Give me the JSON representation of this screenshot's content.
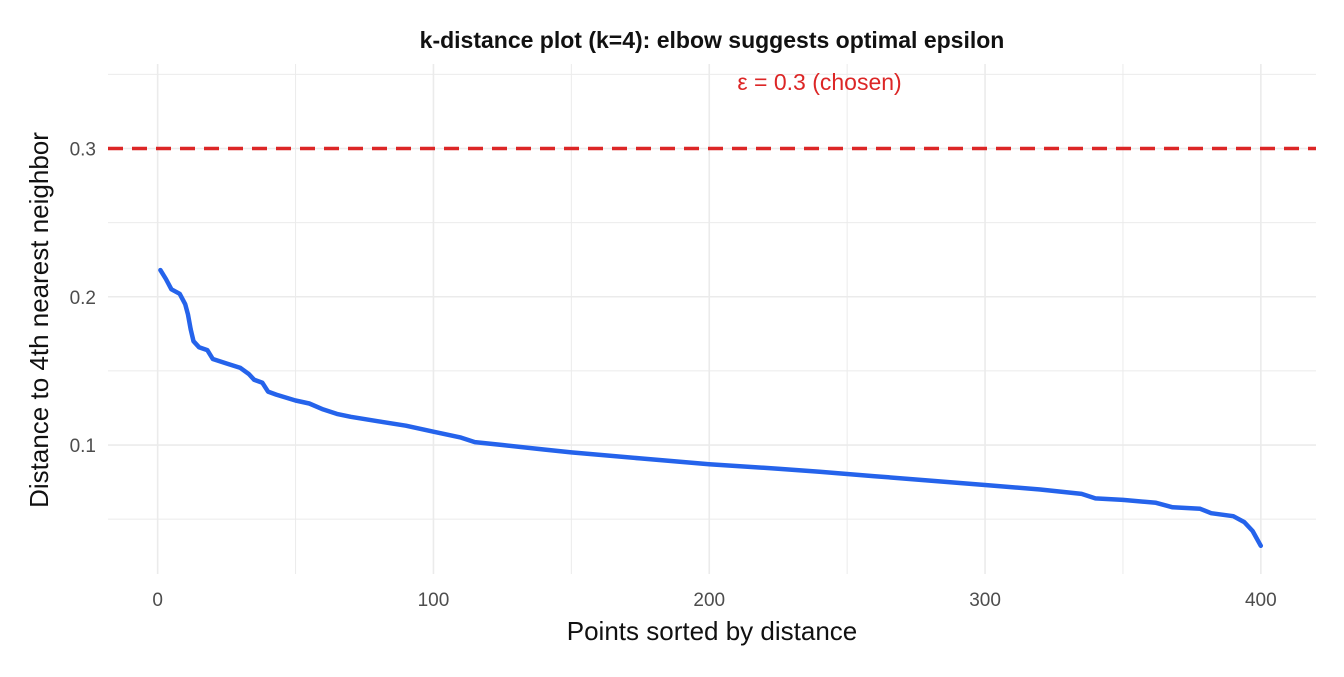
{
  "chart_data": {
    "type": "line",
    "title": "k-distance plot (k=4): elbow suggests optimal epsilon",
    "xlabel": "Points sorted by distance",
    "ylabel": "Distance to 4th nearest neighbor",
    "xlim": [
      -18,
      420
    ],
    "ylim": [
      0.013,
      0.357
    ],
    "x_ticks": [
      0,
      100,
      200,
      300,
      400
    ],
    "x_tick_labels": [
      "0",
      "100",
      "200",
      "300",
      "400"
    ],
    "y_ticks": [
      0.1,
      0.2,
      0.3
    ],
    "y_tick_labels": [
      "0.1",
      "0.2",
      "0.3"
    ],
    "grid": true,
    "legend": "none",
    "colors": {
      "line": "#2563eb",
      "threshold": "#dc2626",
      "grid": "#ebebeb"
    },
    "series": [
      {
        "points": [
          [
            1,
            0.218
          ],
          [
            3,
            0.212
          ],
          [
            5,
            0.205
          ],
          [
            8,
            0.202
          ],
          [
            10,
            0.195
          ],
          [
            11,
            0.188
          ],
          [
            12,
            0.178
          ],
          [
            13,
            0.17
          ],
          [
            15,
            0.166
          ],
          [
            18,
            0.164
          ],
          [
            20,
            0.158
          ],
          [
            25,
            0.155
          ],
          [
            30,
            0.152
          ],
          [
            33,
            0.148
          ],
          [
            35,
            0.144
          ],
          [
            38,
            0.142
          ],
          [
            40,
            0.136
          ],
          [
            43,
            0.134
          ],
          [
            50,
            0.13
          ],
          [
            55,
            0.128
          ],
          [
            60,
            0.124
          ],
          [
            65,
            0.121
          ],
          [
            70,
            0.119
          ],
          [
            80,
            0.116
          ],
          [
            90,
            0.113
          ],
          [
            100,
            0.109
          ],
          [
            110,
            0.105
          ],
          [
            115,
            0.102
          ],
          [
            125,
            0.1
          ],
          [
            140,
            0.097
          ],
          [
            150,
            0.095
          ],
          [
            175,
            0.091
          ],
          [
            200,
            0.087
          ],
          [
            225,
            0.084
          ],
          [
            240,
            0.082
          ],
          [
            260,
            0.079
          ],
          [
            280,
            0.076
          ],
          [
            300,
            0.073
          ],
          [
            320,
            0.07
          ],
          [
            335,
            0.067
          ],
          [
            340,
            0.064
          ],
          [
            350,
            0.063
          ],
          [
            362,
            0.061
          ],
          [
            368,
            0.058
          ],
          [
            378,
            0.057
          ],
          [
            382,
            0.054
          ],
          [
            390,
            0.052
          ],
          [
            394,
            0.048
          ],
          [
            397,
            0.042
          ],
          [
            400,
            0.032
          ]
        ]
      }
    ],
    "annotations": [
      {
        "type": "hline",
        "y": 0.3,
        "style": "dashed",
        "color": "#dc2626"
      },
      {
        "type": "text",
        "text": "ε = 0.3 (chosen)",
        "x": 240,
        "y": 0.345,
        "color": "#dc2626"
      }
    ]
  }
}
